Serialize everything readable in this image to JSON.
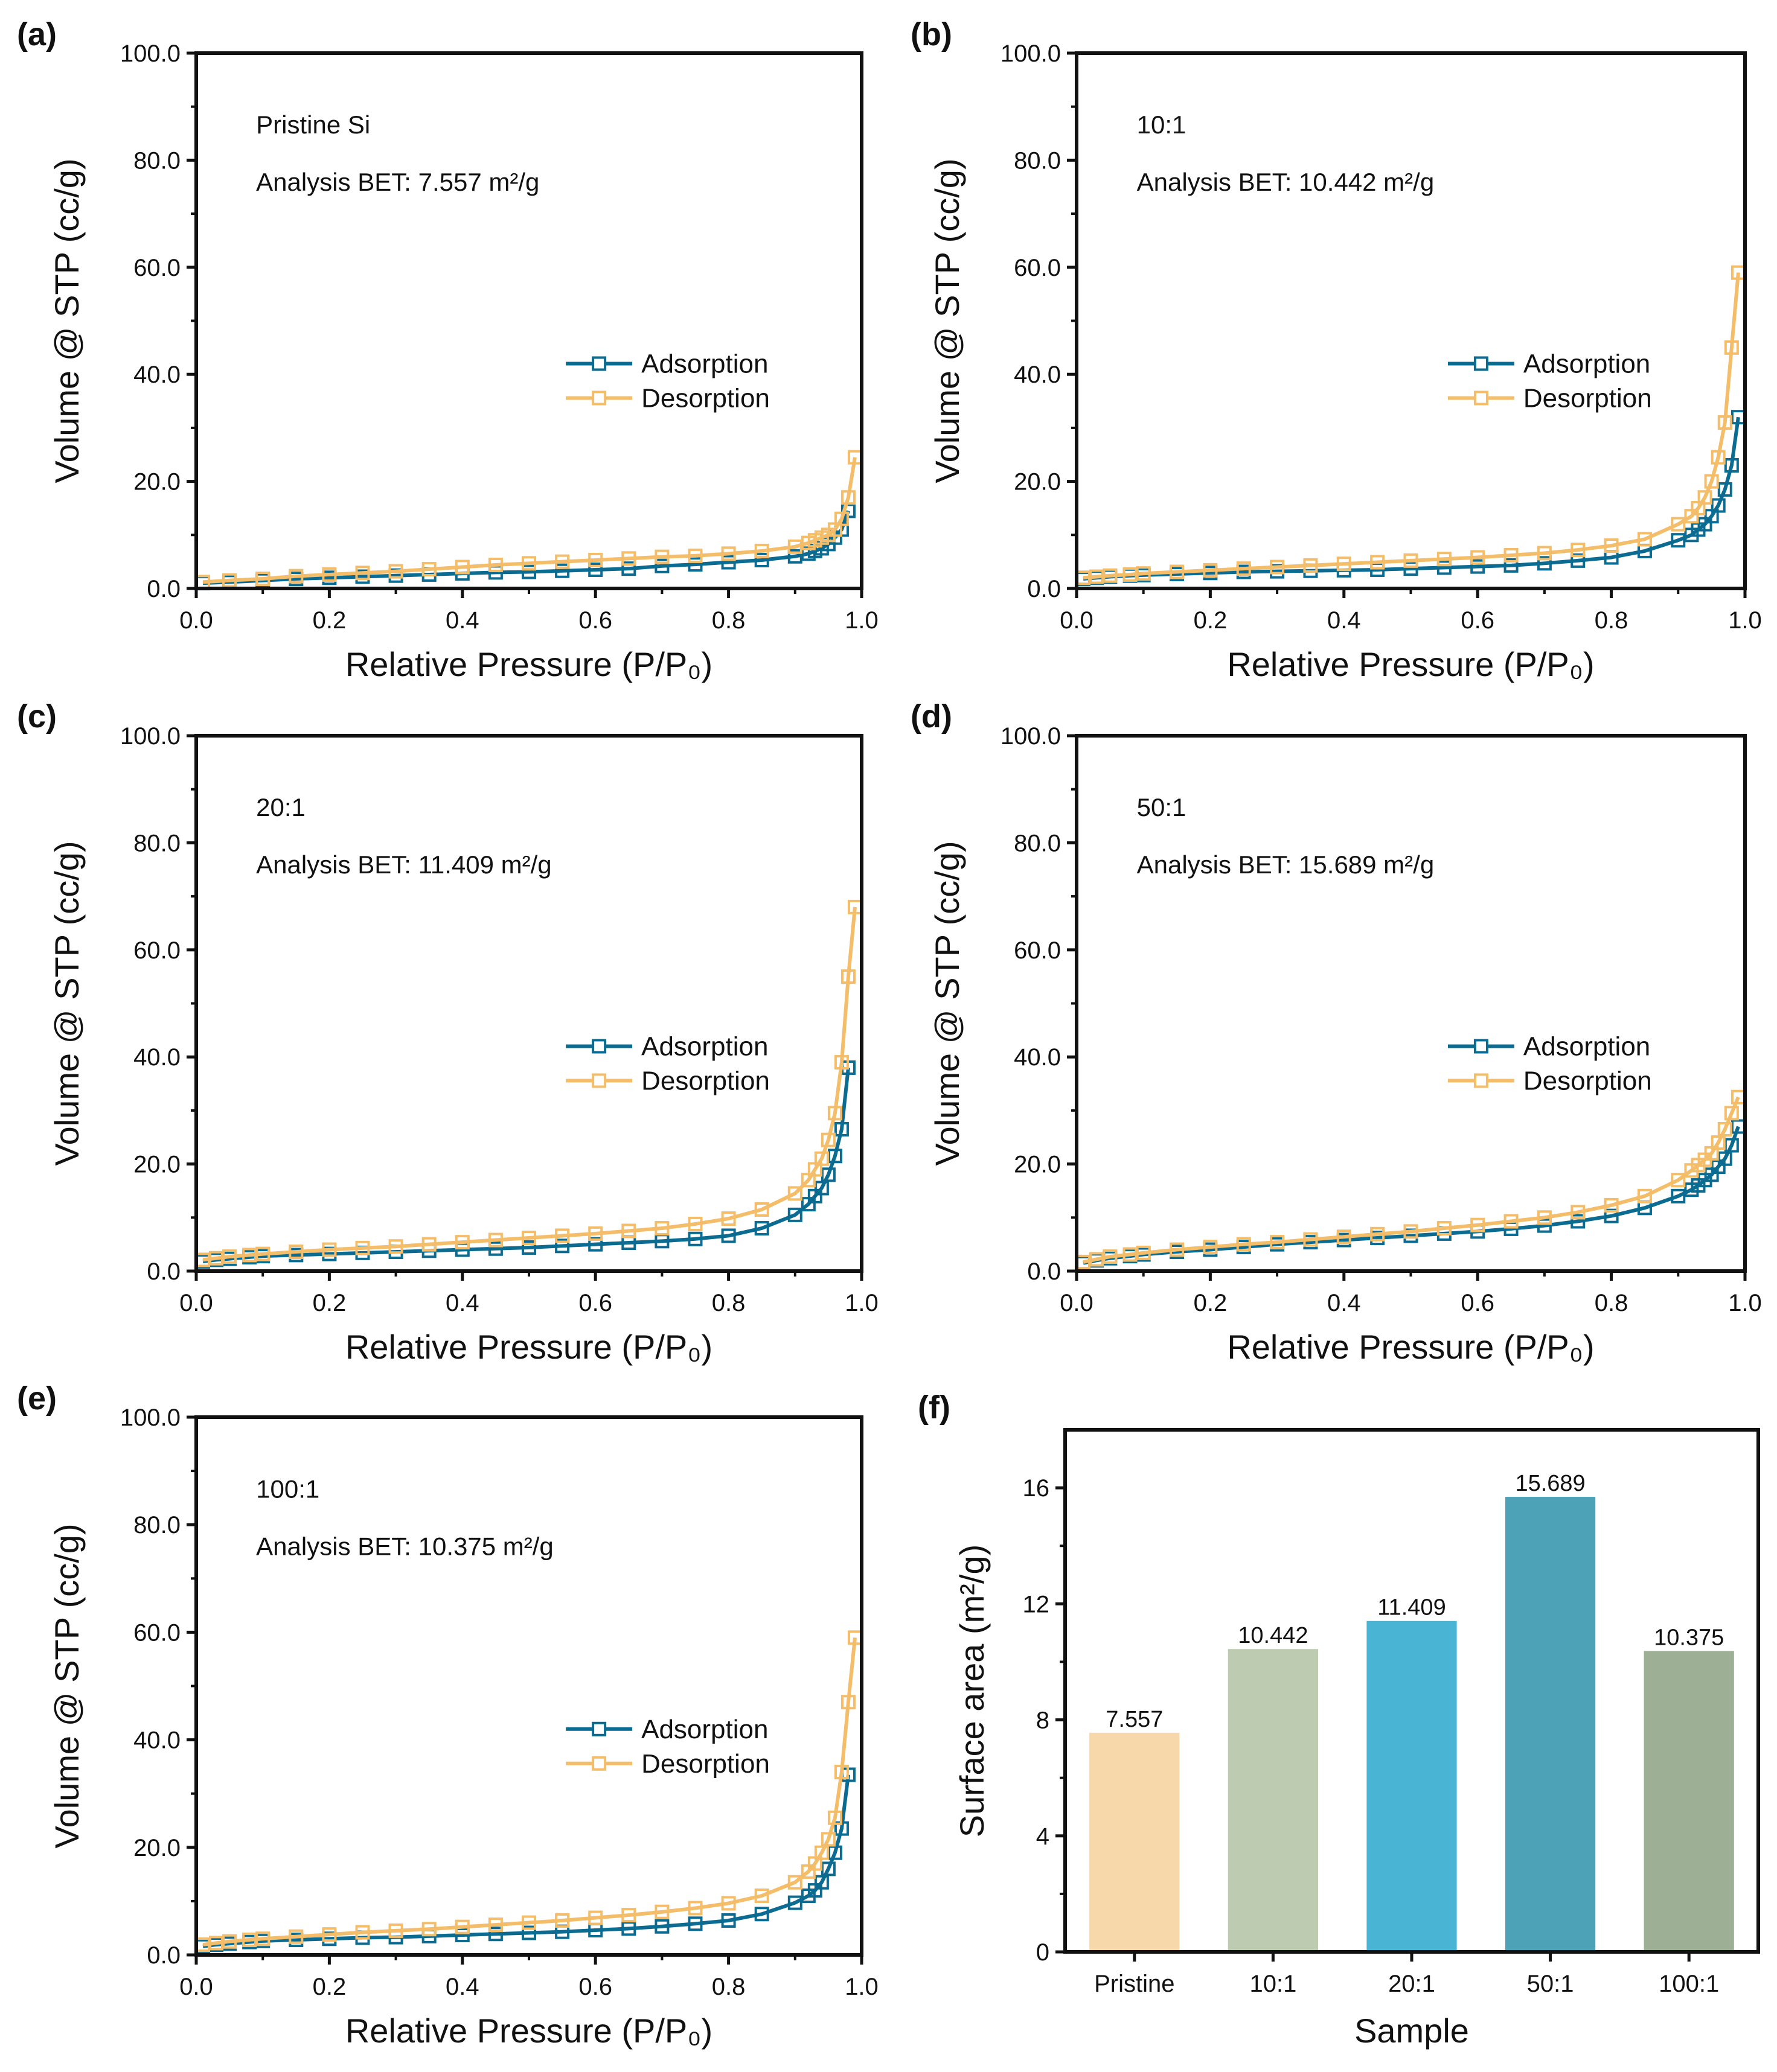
{
  "colors": {
    "adsorption": "#0b6b90",
    "desorption": "#f4bd6a"
  },
  "chart_data": [
    {
      "panel": "(a)",
      "type": "line",
      "xlabel": "Relative Pressure (P/P₀)",
      "ylabel": "Volume @ STP (cc/g)",
      "xlim": [
        0,
        1.0
      ],
      "ylim": [
        0,
        100
      ],
      "xticks": [
        "0.0",
        "0.2",
        "0.4",
        "0.6",
        "0.8",
        "1.0"
      ],
      "yticks": [
        "0.0",
        "20.0",
        "40.0",
        "60.0",
        "80.0",
        "100.0"
      ],
      "annotations": [
        "Pristine Si",
        "Analysis BET: 7.557 m²/g"
      ],
      "legend": "right-center",
      "series": [
        {
          "name": "Adsorption",
          "marker": "open-square",
          "x": [
            0.01,
            0.05,
            0.1,
            0.15,
            0.2,
            0.25,
            0.3,
            0.35,
            0.4,
            0.45,
            0.5,
            0.55,
            0.6,
            0.65,
            0.7,
            0.75,
            0.8,
            0.85,
            0.9,
            0.92,
            0.93,
            0.94,
            0.95,
            0.96,
            0.97,
            0.98
          ],
          "y": [
            1.0,
            1.2,
            1.5,
            1.8,
            2.0,
            2.2,
            2.4,
            2.6,
            2.8,
            3.0,
            3.1,
            3.3,
            3.5,
            3.7,
            4.2,
            4.5,
            4.9,
            5.3,
            6.0,
            6.5,
            7.0,
            7.5,
            8.3,
            9.5,
            11.0,
            14.5
          ]
        },
        {
          "name": "Desorption",
          "marker": "open-square",
          "x": [
            0.99,
            0.98,
            0.97,
            0.96,
            0.95,
            0.94,
            0.93,
            0.92,
            0.9,
            0.85,
            0.8,
            0.75,
            0.7,
            0.65,
            0.6,
            0.55,
            0.5,
            0.45,
            0.4,
            0.35,
            0.3,
            0.25,
            0.2,
            0.15,
            0.1,
            0.05,
            0.01
          ],
          "y": [
            24.5,
            17.0,
            13.0,
            11.0,
            10.0,
            9.5,
            9.0,
            8.5,
            7.8,
            7.0,
            6.5,
            6.1,
            5.9,
            5.6,
            5.3,
            5.0,
            4.7,
            4.4,
            4.0,
            3.6,
            3.2,
            2.9,
            2.6,
            2.3,
            1.8,
            1.5,
            1.2
          ]
        }
      ]
    },
    {
      "panel": "(b)",
      "type": "line",
      "xlabel": "Relative Pressure (P/P₀)",
      "ylabel": "Volume @ STP (cc/g)",
      "xlim": [
        0,
        1.0
      ],
      "ylim": [
        0,
        100
      ],
      "xticks": [
        "0.0",
        "0.2",
        "0.4",
        "0.6",
        "0.8",
        "1.0"
      ],
      "yticks": [
        "0.0",
        "20.0",
        "40.0",
        "60.0",
        "80.0",
        "100.0"
      ],
      "annotations": [
        "10:1",
        "Analysis BET: 10.442 m²/g"
      ],
      "legend": "right-center",
      "series": [
        {
          "name": "Adsorption",
          "marker": "open-square",
          "x": [
            0.01,
            0.03,
            0.05,
            0.08,
            0.1,
            0.15,
            0.2,
            0.25,
            0.3,
            0.35,
            0.4,
            0.45,
            0.5,
            0.55,
            0.6,
            0.65,
            0.7,
            0.75,
            0.8,
            0.85,
            0.9,
            0.92,
            0.93,
            0.94,
            0.95,
            0.96,
            0.97,
            0.98,
            0.99
          ],
          "y": [
            1.8,
            2.0,
            2.2,
            2.4,
            2.5,
            2.7,
            2.9,
            3.1,
            3.2,
            3.3,
            3.4,
            3.5,
            3.7,
            3.9,
            4.1,
            4.3,
            4.7,
            5.2,
            5.8,
            7.0,
            9.0,
            10.0,
            11.0,
            12.0,
            13.5,
            15.5,
            18.5,
            23.0,
            32.0
          ]
        },
        {
          "name": "Desorption",
          "marker": "open-square",
          "x": [
            0.99,
            0.98,
            0.97,
            0.96,
            0.95,
            0.94,
            0.93,
            0.92,
            0.9,
            0.85,
            0.8,
            0.75,
            0.7,
            0.65,
            0.6,
            0.55,
            0.5,
            0.45,
            0.4,
            0.35,
            0.3,
            0.25,
            0.2,
            0.15,
            0.1,
            0.08,
            0.05,
            0.03,
            0.01
          ],
          "y": [
            59.0,
            45.0,
            31.0,
            24.5,
            20.0,
            17.0,
            15.0,
            13.5,
            12.0,
            9.2,
            8.0,
            7.2,
            6.6,
            6.2,
            5.8,
            5.5,
            5.2,
            4.9,
            4.6,
            4.3,
            4.0,
            3.7,
            3.4,
            3.1,
            2.8,
            2.6,
            2.4,
            2.2,
            2.0
          ]
        }
      ]
    },
    {
      "panel": "(c)",
      "type": "line",
      "xlabel": "Relative Pressure (P/P₀)",
      "ylabel": "Volume @ STP (cc/g)",
      "xlim": [
        0,
        1.0
      ],
      "ylim": [
        0,
        100
      ],
      "xticks": [
        "0.0",
        "0.2",
        "0.4",
        "0.6",
        "0.8",
        "1.0"
      ],
      "yticks": [
        "0.0",
        "20.0",
        "40.0",
        "60.0",
        "80.0",
        "100.0"
      ],
      "annotations": [
        "20:1",
        "Analysis BET: 11.409 m²/g"
      ],
      "legend": "right-center",
      "series": [
        {
          "name": "Adsorption",
          "marker": "open-square",
          "x": [
            0.01,
            0.03,
            0.05,
            0.08,
            0.1,
            0.15,
            0.2,
            0.25,
            0.3,
            0.35,
            0.4,
            0.45,
            0.5,
            0.55,
            0.6,
            0.65,
            0.7,
            0.75,
            0.8,
            0.85,
            0.9,
            0.92,
            0.93,
            0.94,
            0.95,
            0.96,
            0.97,
            0.98
          ],
          "y": [
            1.8,
            2.1,
            2.3,
            2.6,
            2.8,
            3.0,
            3.2,
            3.4,
            3.6,
            3.8,
            4.0,
            4.2,
            4.4,
            4.7,
            5.0,
            5.3,
            5.6,
            6.0,
            6.6,
            8.0,
            10.5,
            12.5,
            14.0,
            15.5,
            18.0,
            21.5,
            26.5,
            38.0
          ]
        },
        {
          "name": "Desorption",
          "marker": "open-square",
          "x": [
            0.99,
            0.98,
            0.97,
            0.96,
            0.95,
            0.94,
            0.93,
            0.92,
            0.9,
            0.85,
            0.8,
            0.75,
            0.7,
            0.65,
            0.6,
            0.55,
            0.5,
            0.45,
            0.4,
            0.35,
            0.3,
            0.25,
            0.2,
            0.15,
            0.1,
            0.08,
            0.05,
            0.03,
            0.01
          ],
          "y": [
            68.0,
            55.0,
            39.0,
            29.5,
            24.5,
            21.0,
            19.0,
            17.0,
            14.5,
            11.5,
            9.8,
            8.8,
            8.0,
            7.5,
            7.0,
            6.6,
            6.2,
            5.8,
            5.4,
            5.0,
            4.6,
            4.3,
            4.0,
            3.6,
            3.2,
            3.0,
            2.7,
            2.4,
            2.1
          ]
        }
      ]
    },
    {
      "panel": "(d)",
      "type": "line",
      "xlabel": "Relative Pressure (P/P₀)",
      "ylabel": "Volume @ STP (cc/g)",
      "xlim": [
        0,
        1.0
      ],
      "ylim": [
        0,
        100
      ],
      "xticks": [
        "0.0",
        "0.2",
        "0.4",
        "0.6",
        "0.8",
        "1.0"
      ],
      "yticks": [
        "0.0",
        "20.0",
        "40.0",
        "60.0",
        "80.0",
        "100.0"
      ],
      "annotations": [
        "50:1",
        "Analysis BET: 15.689 m²/g"
      ],
      "legend": "right-center",
      "series": [
        {
          "name": "Adsorption",
          "marker": "open-square",
          "x": [
            0.01,
            0.03,
            0.05,
            0.08,
            0.1,
            0.15,
            0.2,
            0.25,
            0.3,
            0.35,
            0.4,
            0.45,
            0.5,
            0.55,
            0.6,
            0.65,
            0.7,
            0.75,
            0.8,
            0.85,
            0.9,
            0.92,
            0.93,
            0.94,
            0.95,
            0.96,
            0.97,
            0.98,
            0.99
          ],
          "y": [
            1.5,
            2.0,
            2.4,
            2.8,
            3.1,
            3.6,
            4.0,
            4.5,
            5.0,
            5.4,
            5.8,
            6.2,
            6.6,
            7.0,
            7.4,
            7.9,
            8.5,
            9.3,
            10.3,
            11.8,
            14.0,
            15.2,
            16.0,
            17.0,
            18.0,
            19.5,
            21.0,
            23.5,
            27.0
          ]
        },
        {
          "name": "Desorption",
          "marker": "open-square",
          "x": [
            0.99,
            0.98,
            0.97,
            0.96,
            0.95,
            0.94,
            0.93,
            0.92,
            0.9,
            0.85,
            0.8,
            0.75,
            0.7,
            0.65,
            0.6,
            0.55,
            0.5,
            0.45,
            0.4,
            0.35,
            0.3,
            0.25,
            0.2,
            0.15,
            0.1,
            0.08,
            0.05,
            0.03,
            0.01
          ],
          "y": [
            32.5,
            29.5,
            26.5,
            24.0,
            22.0,
            20.8,
            19.8,
            18.8,
            17.0,
            14.0,
            12.3,
            11.0,
            10.0,
            9.3,
            8.6,
            8.0,
            7.4,
            6.9,
            6.4,
            5.9,
            5.4,
            5.0,
            4.5,
            4.0,
            3.4,
            3.1,
            2.7,
            2.2,
            1.7
          ]
        }
      ]
    },
    {
      "panel": "(e)",
      "type": "line",
      "xlabel": "Relative Pressure (P/P₀)",
      "ylabel": "Volume @ STP (cc/g)",
      "xlim": [
        0,
        1.0
      ],
      "ylim": [
        0,
        100
      ],
      "xticks": [
        "0.0",
        "0.2",
        "0.4",
        "0.6",
        "0.8",
        "1.0"
      ],
      "yticks": [
        "0.0",
        "20.0",
        "40.0",
        "60.0",
        "80.0",
        "100.0"
      ],
      "annotations": [
        "100:1",
        "Analysis BET: 10.375 m²/g"
      ],
      "legend": "right-center",
      "series": [
        {
          "name": "Adsorption",
          "marker": "open-square",
          "x": [
            0.01,
            0.03,
            0.05,
            0.08,
            0.1,
            0.15,
            0.2,
            0.25,
            0.3,
            0.35,
            0.4,
            0.45,
            0.5,
            0.55,
            0.6,
            0.65,
            0.7,
            0.75,
            0.8,
            0.85,
            0.9,
            0.92,
            0.93,
            0.94,
            0.95,
            0.96,
            0.97,
            0.98
          ],
          "y": [
            1.6,
            1.9,
            2.1,
            2.4,
            2.6,
            2.8,
            3.0,
            3.2,
            3.3,
            3.5,
            3.7,
            3.9,
            4.1,
            4.3,
            4.6,
            4.9,
            5.3,
            5.8,
            6.4,
            7.6,
            9.7,
            11.0,
            12.0,
            13.5,
            16.0,
            19.0,
            23.5,
            33.5
          ]
        },
        {
          "name": "Desorption",
          "marker": "open-square",
          "x": [
            0.99,
            0.98,
            0.97,
            0.96,
            0.95,
            0.94,
            0.93,
            0.92,
            0.9,
            0.85,
            0.8,
            0.75,
            0.7,
            0.65,
            0.6,
            0.55,
            0.5,
            0.45,
            0.4,
            0.35,
            0.3,
            0.25,
            0.2,
            0.15,
            0.1,
            0.08,
            0.05,
            0.03,
            0.01
          ],
          "y": [
            59.0,
            47.0,
            34.0,
            25.5,
            21.5,
            19.0,
            17.0,
            15.5,
            13.5,
            11.0,
            9.6,
            8.7,
            8.0,
            7.4,
            6.9,
            6.4,
            6.0,
            5.6,
            5.2,
            4.8,
            4.5,
            4.2,
            3.8,
            3.4,
            3.0,
            2.8,
            2.5,
            2.2,
            1.9
          ]
        }
      ]
    },
    {
      "panel": "(f)",
      "type": "bar",
      "xlabel": "Sample",
      "ylabel": "Surface area (m²/g)",
      "ylim": [
        0,
        18
      ],
      "yticks": [
        "0",
        "4",
        "8",
        "12",
        "16"
      ],
      "categories": [
        "Pristine",
        "10:1",
        "20:1",
        "50:1",
        "100:1"
      ],
      "values": [
        7.557,
        10.442,
        11.409,
        15.689,
        10.375
      ],
      "data_labels": [
        "7.557",
        "10.442",
        "11.409",
        "15.689",
        "10.375"
      ],
      "bar_colors": [
        "#f7d8aa",
        "#bdcbb1",
        "#49b4d3",
        "#4da2b8",
        "#9db096"
      ]
    }
  ]
}
